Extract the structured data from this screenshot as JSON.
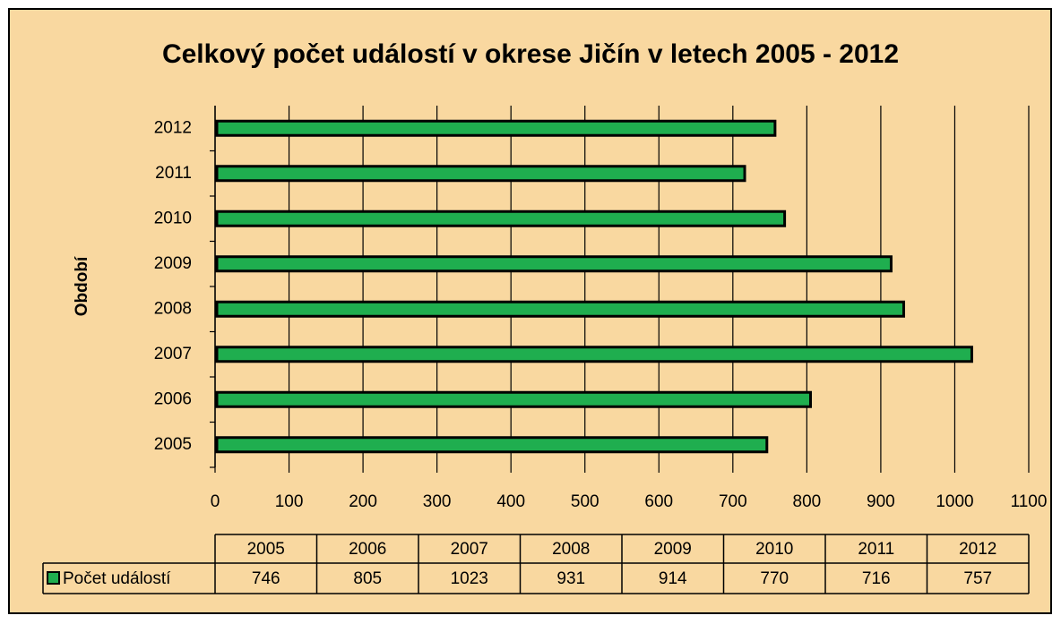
{
  "chart_data": {
    "type": "bar",
    "orientation": "horizontal",
    "title": "Celkový počet událostí v okrese Jičín v letech 2005 - 2012",
    "y_label": "Období",
    "categories": [
      "2005",
      "2006",
      "2007",
      "2008",
      "2009",
      "2010",
      "2011",
      "2012"
    ],
    "series": [
      {
        "name": "Počet událostí",
        "color": "#1fae4f",
        "values": [
          746,
          805,
          1023,
          931,
          914,
          770,
          716,
          757
        ]
      }
    ],
    "xlim": [
      0,
      1100
    ],
    "xticks": [
      0,
      100,
      200,
      300,
      400,
      500,
      600,
      700,
      800,
      900,
      1000,
      1100
    ],
    "grid": true,
    "data_table": true
  }
}
